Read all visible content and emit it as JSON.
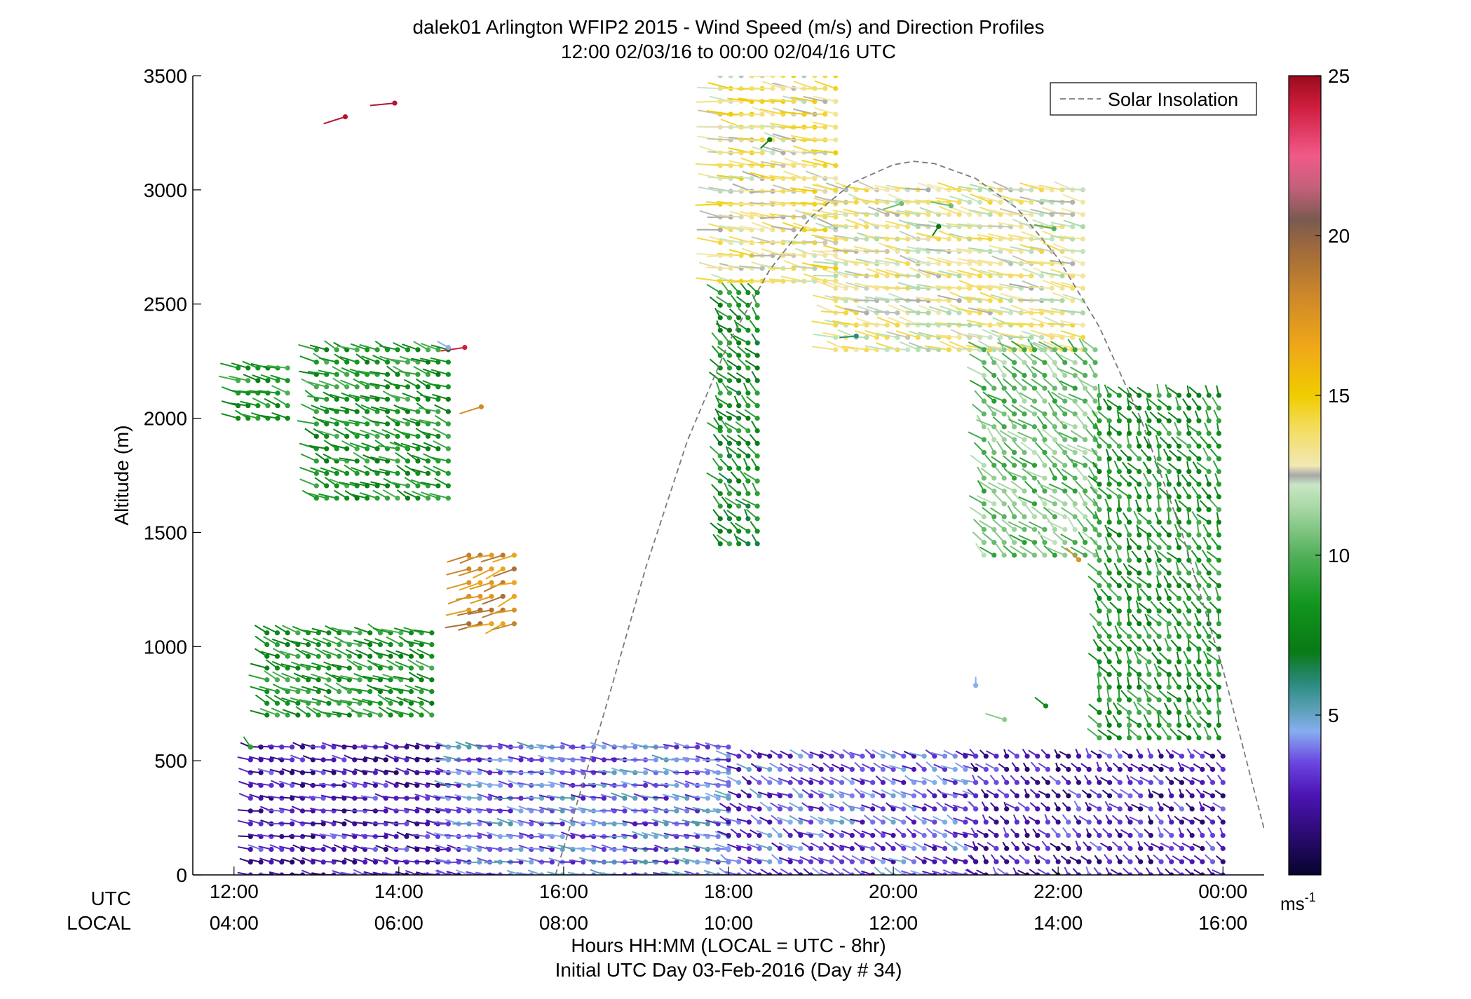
{
  "chart_data": {
    "type": "scatter",
    "title_line1": "dalek01 Arlington WFIP2 2015 - Wind Speed (m/s) and Direction Profiles",
    "title_line2": "12:00 02/03/16 to 00:00 02/04/16  UTC",
    "ylabel": "Altitude (m)",
    "ylim": [
      0,
      3500
    ],
    "yticks": [
      0,
      500,
      1000,
      1500,
      2000,
      2500,
      3000,
      3500
    ],
    "xlim_hours_utc": [
      11.5,
      24.5
    ],
    "x_ticks": [
      {
        "hour": 12,
        "utc": "12:00",
        "local": "04:00"
      },
      {
        "hour": 14,
        "utc": "14:00",
        "local": "06:00"
      },
      {
        "hour": 16,
        "utc": "16:00",
        "local": "08:00"
      },
      {
        "hour": 18,
        "utc": "18:00",
        "local": "10:00"
      },
      {
        "hour": 20,
        "utc": "20:00",
        "local": "12:00"
      },
      {
        "hour": 22,
        "utc": "22:00",
        "local": "14:00"
      },
      {
        "hour": 24,
        "utc": "00:00",
        "local": "16:00"
      }
    ],
    "xrow_label_utc": "UTC",
    "xrow_label_local": "LOCAL",
    "xlabel_line1": "Hours HH:MM  (LOCAL = UTC - 8hr)",
    "xlabel_line2": "Initial UTC Day 03-Feb-2016 (Day # 34)",
    "legend": {
      "label": "Solar Insolation",
      "style": "dashed",
      "color": "#7a7a7a",
      "placement": "top-right"
    },
    "colorbar": {
      "range": [
        0,
        25
      ],
      "ticks": [
        5,
        10,
        15,
        20,
        25
      ],
      "unit_base": "ms",
      "unit_exp": "-1",
      "stops": [
        {
          "v": 0,
          "c": "#05052e"
        },
        {
          "v": 1.2,
          "c": "#2a0a6e"
        },
        {
          "v": 2.5,
          "c": "#4b14b4"
        },
        {
          "v": 3.5,
          "c": "#6a45e0"
        },
        {
          "v": 4.5,
          "c": "#86aef0"
        },
        {
          "v": 5.2,
          "c": "#5aa0b4"
        },
        {
          "v": 6.0,
          "c": "#2a8a7e"
        },
        {
          "v": 7.0,
          "c": "#087a14"
        },
        {
          "v": 8.5,
          "c": "#12961e"
        },
        {
          "v": 10,
          "c": "#52b05a"
        },
        {
          "v": 11.5,
          "c": "#a9d8a6"
        },
        {
          "v": 12.2,
          "c": "#c8e6c4"
        },
        {
          "v": 12.5,
          "c": "#a8a8a8"
        },
        {
          "v": 12.8,
          "c": "#f2e8b4"
        },
        {
          "v": 14,
          "c": "#f4dc5c"
        },
        {
          "v": 15,
          "c": "#f0cc00"
        },
        {
          "v": 16.5,
          "c": "#f0a818"
        },
        {
          "v": 18,
          "c": "#d08a28"
        },
        {
          "v": 19.5,
          "c": "#a26c3a"
        },
        {
          "v": 20.5,
          "c": "#7a5a50"
        },
        {
          "v": 21.5,
          "c": "#c4607a"
        },
        {
          "v": 22.5,
          "c": "#f05a88"
        },
        {
          "v": 24,
          "c": "#d01e40"
        },
        {
          "v": 25,
          "c": "#9a0a1c"
        }
      ]
    },
    "solar_insolation_curve": [
      [
        15.9,
        0
      ],
      [
        16.5,
        720
      ],
      [
        17.0,
        1350
      ],
      [
        17.5,
        1900
      ],
      [
        18.0,
        2330
      ],
      [
        18.5,
        2650
      ],
      [
        19.0,
        2880
      ],
      [
        19.5,
        3030
      ],
      [
        20.0,
        3110
      ],
      [
        20.25,
        3125
      ],
      [
        20.5,
        3115
      ],
      [
        21.0,
        3050
      ],
      [
        21.5,
        2920
      ],
      [
        22.0,
        2700
      ],
      [
        22.5,
        2400
      ],
      [
        23.0,
        2000
      ],
      [
        23.5,
        1500
      ],
      [
        24.0,
        900
      ],
      [
        24.5,
        200
      ]
    ],
    "wind_barb_profiles": [
      {
        "label": "12:00-14:30 boundary layer (low)",
        "hours": [
          12.2,
          14.6
        ],
        "alt": [
          0,
          560
        ],
        "speed_ms": 2.5,
        "dir_deg": 250
      },
      {
        "label": "14:30-18:00 boundary layer (low)",
        "hours": [
          14.6,
          18.0
        ],
        "alt": [
          0,
          560
        ],
        "speed_ms": 4.0,
        "dir_deg": 255
      },
      {
        "label": "18:00-21:00 boundary layer (low)",
        "hours": [
          18.0,
          21.0
        ],
        "alt": [
          0,
          520
        ],
        "speed_ms": 3.5,
        "dir_deg": 230
      },
      {
        "label": "21:00-24:00 boundary layer (low)",
        "hours": [
          21.0,
          24.0
        ],
        "alt": [
          0,
          520
        ],
        "speed_ms": 2.5,
        "dir_deg": 210
      },
      {
        "label": "12:00-12:40 mid layer",
        "hours": [
          12.05,
          12.65
        ],
        "alt": [
          2000,
          2220
        ],
        "speed_ms": 8.5,
        "dir_deg": 240
      },
      {
        "label": "13:00-14:40 mid layer",
        "hours": [
          13.0,
          14.6
        ],
        "alt": [
          1650,
          2300
        ],
        "speed_ms": 8.5,
        "dir_deg": 235
      },
      {
        "label": "12:20-14:20 lower layer",
        "hours": [
          12.4,
          14.4
        ],
        "alt": [
          700,
          1060
        ],
        "speed_ms": 8.5,
        "dir_deg": 235
      },
      {
        "label": "14:50-15:30 orange layer",
        "hours": [
          14.85,
          15.4
        ],
        "alt": [
          1100,
          1400
        ],
        "speed_ms": 18.0,
        "dir_deg": 300
      },
      {
        "label": "17:50-18:30 upper green column",
        "hours": [
          17.9,
          18.35
        ],
        "alt": [
          1450,
          2550
        ],
        "speed_ms": 8.0,
        "dir_deg": 210
      },
      {
        "label": "17:50-19:20 upper layer",
        "hours": [
          17.9,
          19.3
        ],
        "alt": [
          2600,
          3500
        ],
        "speed_ms": 13.5,
        "dir_deg": 255
      },
      {
        "label": "19:20-22:20 upper layer",
        "hours": [
          19.3,
          22.3
        ],
        "alt": [
          2300,
          3000
        ],
        "speed_ms": 13.0,
        "dir_deg": 250
      },
      {
        "label": "21:10-22:40 descending layer",
        "hours": [
          21.1,
          22.45
        ],
        "alt": [
          1400,
          2300
        ],
        "speed_ms": 10.5,
        "dir_deg": 215
      },
      {
        "label": "22:30-24:00 descending green column",
        "hours": [
          22.5,
          23.95
        ],
        "alt": [
          600,
          2100
        ],
        "speed_ms": 8.5,
        "dir_deg": 200
      }
    ],
    "isolated_barbs": [
      {
        "hour": 13.35,
        "alt": 3320,
        "speed_ms": 24.5,
        "dir_deg": 300
      },
      {
        "hour": 13.95,
        "alt": 3380,
        "speed_ms": 24.5,
        "dir_deg": 280
      },
      {
        "hour": 14.8,
        "alt": 2310,
        "speed_ms": 24.0,
        "dir_deg": 285
      },
      {
        "hour": 14.6,
        "alt": 2310,
        "speed_ms": 4.5,
        "dir_deg": 225
      },
      {
        "hour": 15.0,
        "alt": 2050,
        "speed_ms": 18.0,
        "dir_deg": 300
      },
      {
        "hour": 14.1,
        "alt": 1870,
        "speed_ms": 9.0,
        "dir_deg": 240
      },
      {
        "hour": 18.5,
        "alt": 3220,
        "speed_ms": 7.0,
        "dir_deg": 330
      },
      {
        "hour": 19.55,
        "alt": 2360,
        "speed_ms": 6.0,
        "dir_deg": 280
      },
      {
        "hour": 20.1,
        "alt": 2940,
        "speed_ms": 10.5,
        "dir_deg": 300
      },
      {
        "hour": 20.7,
        "alt": 2930,
        "speed_ms": 10.5,
        "dir_deg": 250
      },
      {
        "hour": 20.55,
        "alt": 2840,
        "speed_ms": 7.0,
        "dir_deg": 340
      },
      {
        "hour": 21.0,
        "alt": 830,
        "speed_ms": 4.5,
        "dir_deg": 180
      },
      {
        "hour": 21.35,
        "alt": 680,
        "speed_ms": 11.0,
        "dir_deg": 240
      },
      {
        "hour": 21.85,
        "alt": 740,
        "speed_ms": 8.0,
        "dir_deg": 215
      },
      {
        "hour": 21.95,
        "alt": 2830,
        "speed_ms": 10.0,
        "dir_deg": 250
      },
      {
        "hour": 22.25,
        "alt": 1380,
        "speed_ms": 17.5,
        "dir_deg": 210
      },
      {
        "hour": 17.9,
        "alt": 1960,
        "speed_ms": 8.0,
        "dir_deg": 200
      },
      {
        "hour": 12.2,
        "alt": 560,
        "speed_ms": 9.0,
        "dir_deg": 200
      }
    ]
  }
}
